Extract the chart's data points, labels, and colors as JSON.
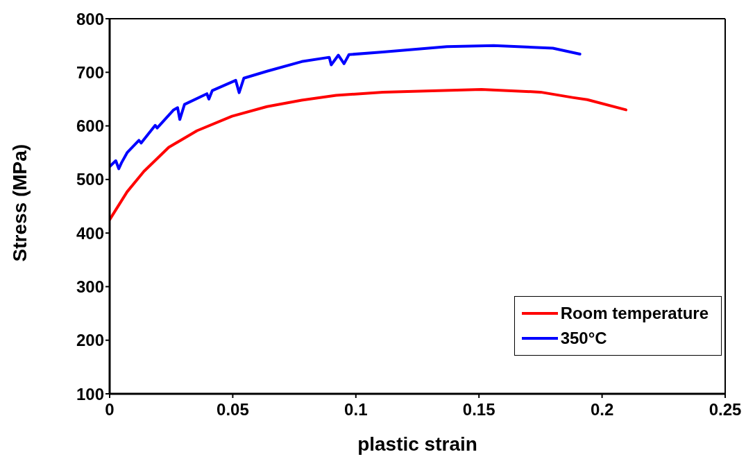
{
  "chart_data": {
    "type": "line",
    "xlabel": "plastic strain",
    "ylabel": "Stress (MPa)",
    "xlim": [
      0,
      0.25
    ],
    "xticks": [
      0,
      0.05,
      0.1,
      0.15,
      0.2,
      0.25
    ],
    "ylim": [
      100,
      800
    ],
    "yticks": [
      100,
      200,
      300,
      400,
      500,
      600,
      700,
      800
    ],
    "legend": "bottom right",
    "marker": "none",
    "line_style": "solid",
    "series": [
      {
        "name": "Room temperature",
        "color": "#ff0000",
        "x": [
          0,
          0.0071,
          0.0139,
          0.024,
          0.0355,
          0.0497,
          0.0639,
          0.078,
          0.092,
          0.111,
          0.151,
          0.175,
          0.188,
          0.194,
          0.2097
        ],
        "values": [
          425,
          477,
          515,
          560,
          591,
          618,
          636,
          648,
          657,
          663,
          668,
          663,
          653,
          649,
          630
        ]
      },
      {
        "name": "350°C",
        "color": "#0000ff",
        "x": [
          0,
          0.0025,
          0.0037,
          0.0048,
          0.0071,
          0.0119,
          0.0128,
          0.0185,
          0.0193,
          0.026,
          0.0276,
          0.0285,
          0.0304,
          0.0395,
          0.0403,
          0.0417,
          0.0512,
          0.0526,
          0.0545,
          0.0639,
          0.078,
          0.0892,
          0.09,
          0.0929,
          0.0952,
          0.0972,
          0.111,
          0.137,
          0.156,
          0.18,
          0.191
        ],
        "values": [
          524,
          535,
          520,
          531,
          550,
          573,
          568,
          601,
          596,
          630,
          634,
          612,
          640,
          660,
          650,
          666,
          685,
          662,
          689,
          702,
          720,
          728,
          714,
          732,
          716,
          733,
          738,
          748,
          750,
          745,
          734
        ]
      }
    ]
  }
}
